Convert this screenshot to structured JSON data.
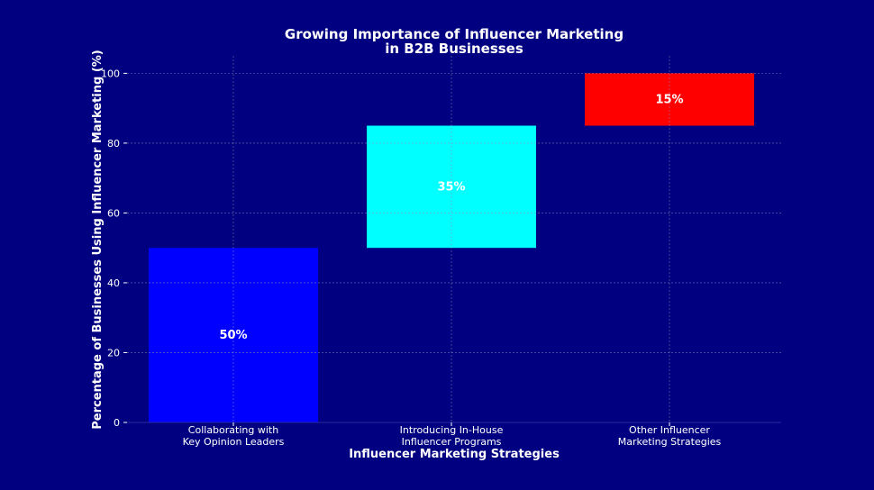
{
  "chart_data": {
    "type": "bar",
    "subtype": "waterfall",
    "title": "Growing Importance of Influencer Marketing\nin B2B Businesses",
    "title_lines": [
      "Growing Importance of Influencer Marketing",
      "in B2B Businesses"
    ],
    "xlabel": "Influencer Marketing Strategies",
    "ylabel": "Percentage of Businesses Using Influencer Marketing (%)",
    "ylim": [
      0,
      105
    ],
    "yticks": [
      0,
      20,
      40,
      60,
      80,
      100
    ],
    "grid": true,
    "categories": [
      "Collaborating with\nKey Opinion Leaders",
      "Introducing In-House\nInfluencer Programs",
      "Other Influencer\nMarketing Strategies"
    ],
    "values": [
      50,
      35,
      15
    ],
    "bases": [
      0,
      50,
      85
    ],
    "data_labels": [
      "50%",
      "35%",
      "15%"
    ],
    "colors": [
      "#0000ff",
      "#00ffff",
      "#ff0000"
    ],
    "background": "#000080",
    "text_color": "#ffffff"
  }
}
